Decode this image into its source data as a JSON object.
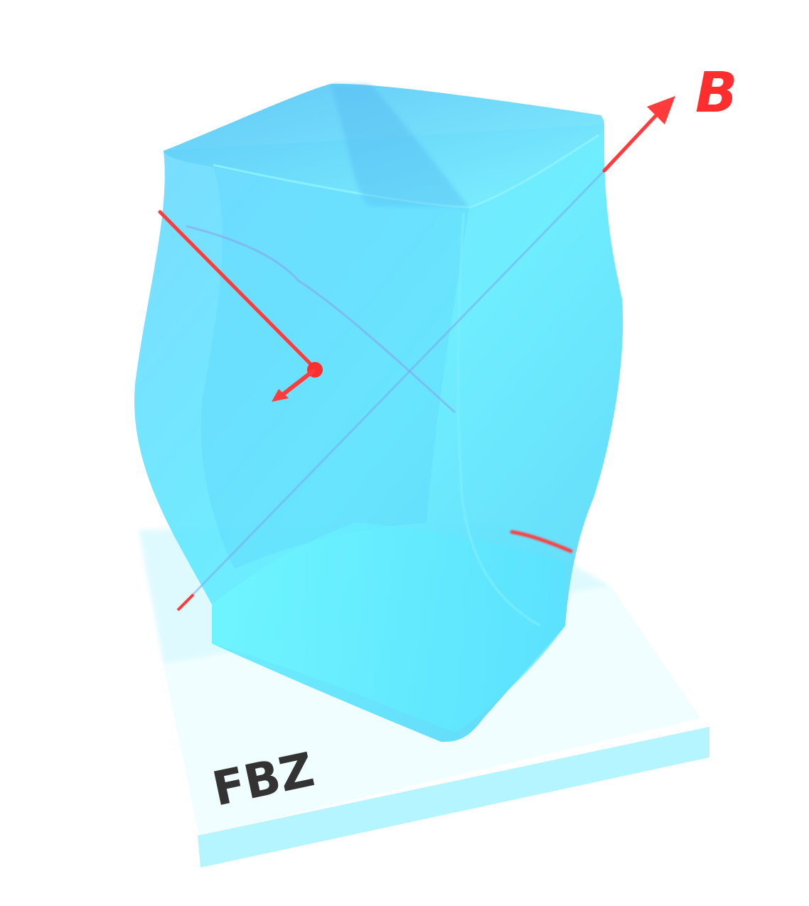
{
  "labels": {
    "field": "B",
    "zone": "FBZ"
  },
  "colors": {
    "surface": "#5fe6ff",
    "surface_shade": "#4fc6f5",
    "zone_plane": "#c9f8ff",
    "orbit": "#ff3b3b",
    "label_dark": "#333333"
  }
}
